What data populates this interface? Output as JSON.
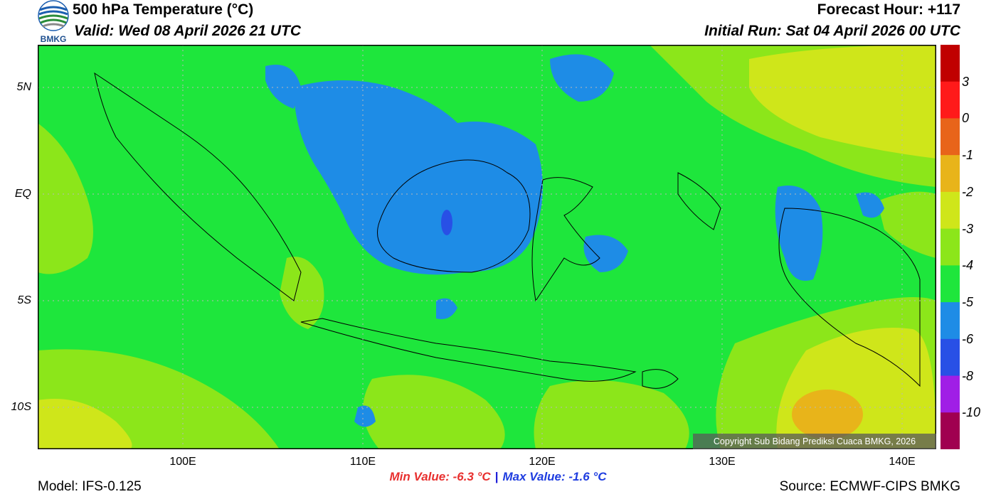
{
  "header": {
    "title": "500 hPa Temperature (°C)",
    "valid": "Valid: Wed 08 April 2026 21 UTC",
    "forecast_hour": "Forecast Hour: +117",
    "initial_run": "Initial Run: Sat 04 April 2026 00 UTC"
  },
  "logo": {
    "text": "BMKG",
    "icon": "bmkg-globe-logo"
  },
  "map": {
    "lat_labels": [
      "5N",
      "EQ",
      "5S",
      "10S"
    ],
    "lon_labels": [
      "100E",
      "110E",
      "120E",
      "130E",
      "140E"
    ],
    "copyright": "Copyright Sub Bidang Prediksi Cuaca BMKG, 2026"
  },
  "colorbar": {
    "labels": [
      "3",
      "0",
      "-1",
      "-2",
      "-3",
      "-4",
      "-5",
      "-6",
      "-8",
      "-10"
    ],
    "colors": [
      "#c00000",
      "#ff1a1a",
      "#e8641a",
      "#e8b41a",
      "#cfe61a",
      "#8ce61a",
      "#1ee63c",
      "#1e8ce6",
      "#2850e6",
      "#a01ee6",
      "#a00050"
    ]
  },
  "stats": {
    "min": "Min Value: -6.3 °C",
    "separator": "|",
    "max": "Max Value: -1.6 °C"
  },
  "footer": {
    "model": "Model: IFS-0.125",
    "source": "Source: ECMWF-CIPS BMKG"
  }
}
